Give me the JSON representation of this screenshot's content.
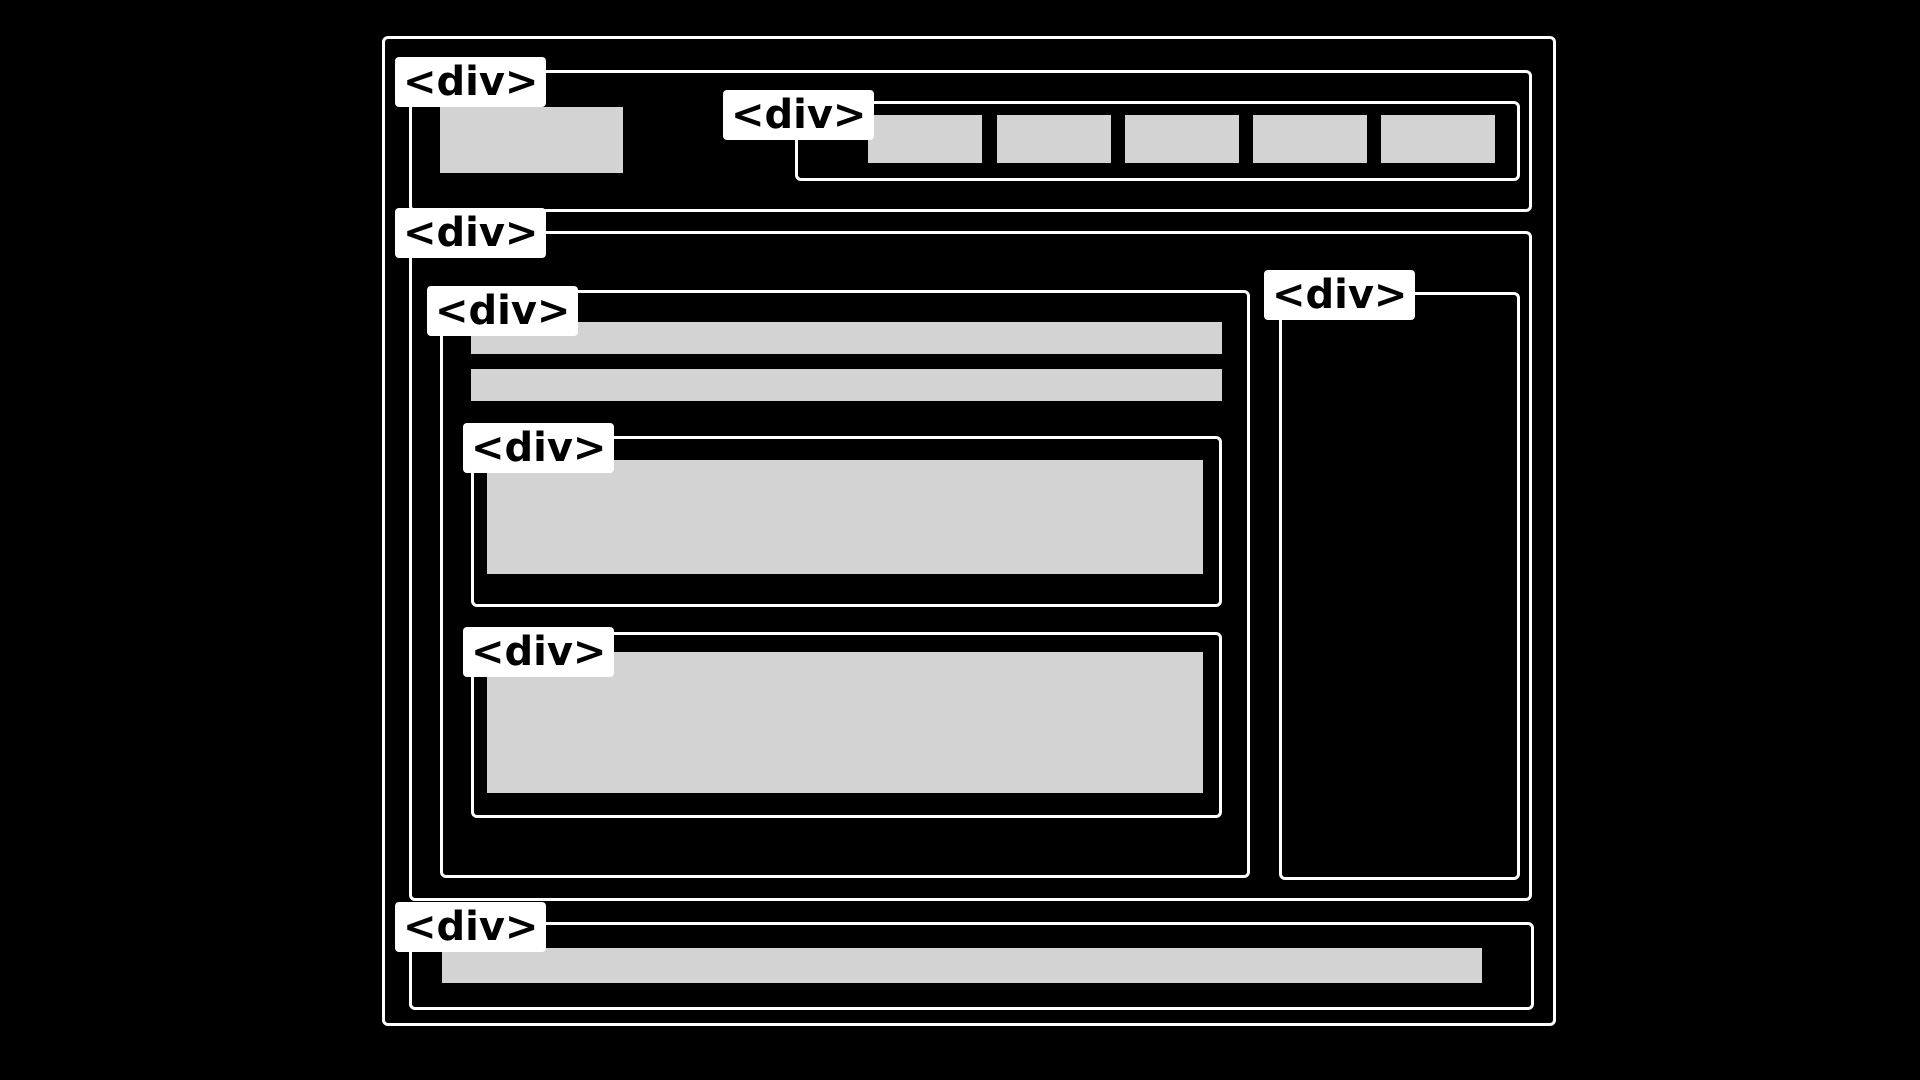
{
  "diagram": {
    "element_tag": "<div>",
    "colors": {
      "background": "#000000",
      "outline": "#ffffff",
      "placeholder": "#d3d3d3",
      "tag_text": "#000000"
    },
    "blocks": {
      "header": {
        "label": "<div>"
      },
      "nav": {
        "label": "<div>",
        "item_count": 5
      },
      "main": {
        "label": "<div>"
      },
      "content": {
        "label": "<div>"
      },
      "section_one": {
        "label": "<div>"
      },
      "section_two": {
        "label": "<div>"
      },
      "sidebar": {
        "label": "<div>"
      },
      "footer": {
        "label": "<div>"
      }
    }
  }
}
